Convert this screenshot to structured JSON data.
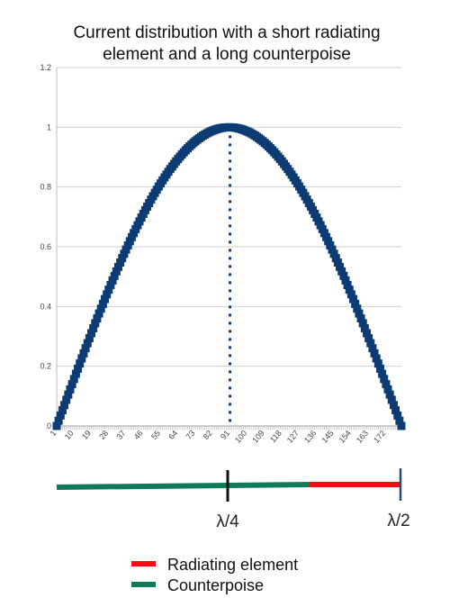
{
  "chart_data": {
    "type": "scatter",
    "title_lines": [
      "Current distribution with a short radiating",
      "element and a long counterpoise"
    ],
    "xlabel": "",
    "ylabel": "",
    "ylim": [
      0,
      1.2
    ],
    "y_ticks": [
      "0",
      "0.2",
      "0.4",
      "0.6",
      "0.8",
      "1",
      "1.2"
    ],
    "x_count": 180,
    "x_tick_labels": [
      "1",
      "10",
      "19",
      "28",
      "37",
      "46",
      "55",
      "64",
      "73",
      "82",
      "91",
      "100",
      "109",
      "118",
      "127",
      "136",
      "145",
      "154",
      "163",
      "172"
    ],
    "x_tick_step": 9,
    "series": [
      {
        "function": "sin(pi*(x-1)/(N-1))",
        "color": "#0d3b73",
        "marker": "square"
      }
    ],
    "peak": {
      "x": 91,
      "y": 1
    },
    "grid": true,
    "legend_position": "bottom"
  },
  "antenna": {
    "counterpoise_color": "#117a5a",
    "radiating_color": "#ee1111",
    "labels": [
      "λ/4",
      "λ/2"
    ]
  },
  "legend": [
    {
      "label": "Radiating element",
      "color": "#ee1111"
    },
    {
      "label": "Counterpoise",
      "color": "#117a5a"
    }
  ]
}
